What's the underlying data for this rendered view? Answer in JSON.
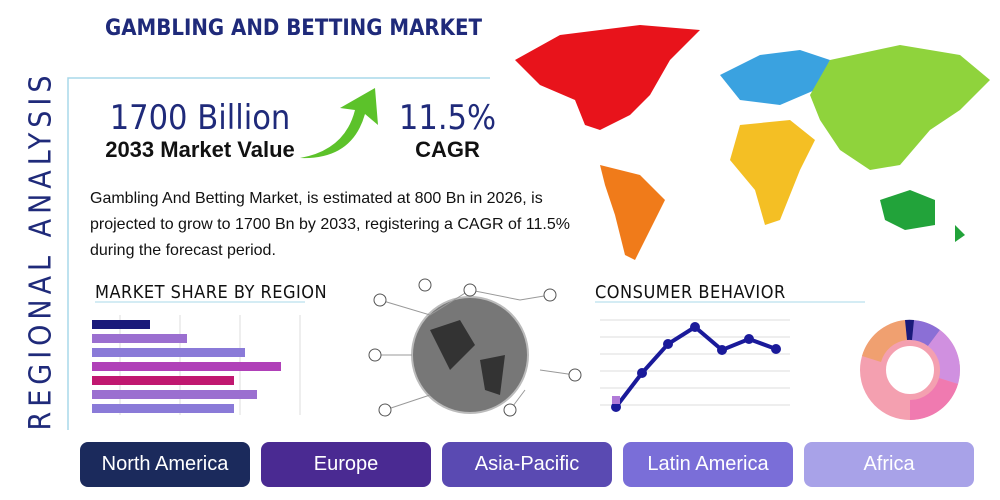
{
  "header": {
    "title": "GAMBLING AND BETTING MARKET",
    "side_title": "REGIONAL ANALYSIS"
  },
  "highlights": {
    "market_value": "1700 Billion",
    "market_value_label": "2033 Market Value",
    "cagr": "11.5%",
    "cagr_label": "CAGR"
  },
  "description": "Gambling And Betting Market, is estimated at 800 Bn in 2026, is projected to grow to 1700 Bn by 2033, registering a CAGR of 11.5% during the forecast period.",
  "sections": {
    "market_share": "MARKET SHARE BY REGION",
    "consumer_behavior": "CONSUMER BEHAVIOR"
  },
  "regions": [
    "North America",
    "Europe",
    "Asia-Pacific",
    "Latin America",
    "Africa"
  ]
}
